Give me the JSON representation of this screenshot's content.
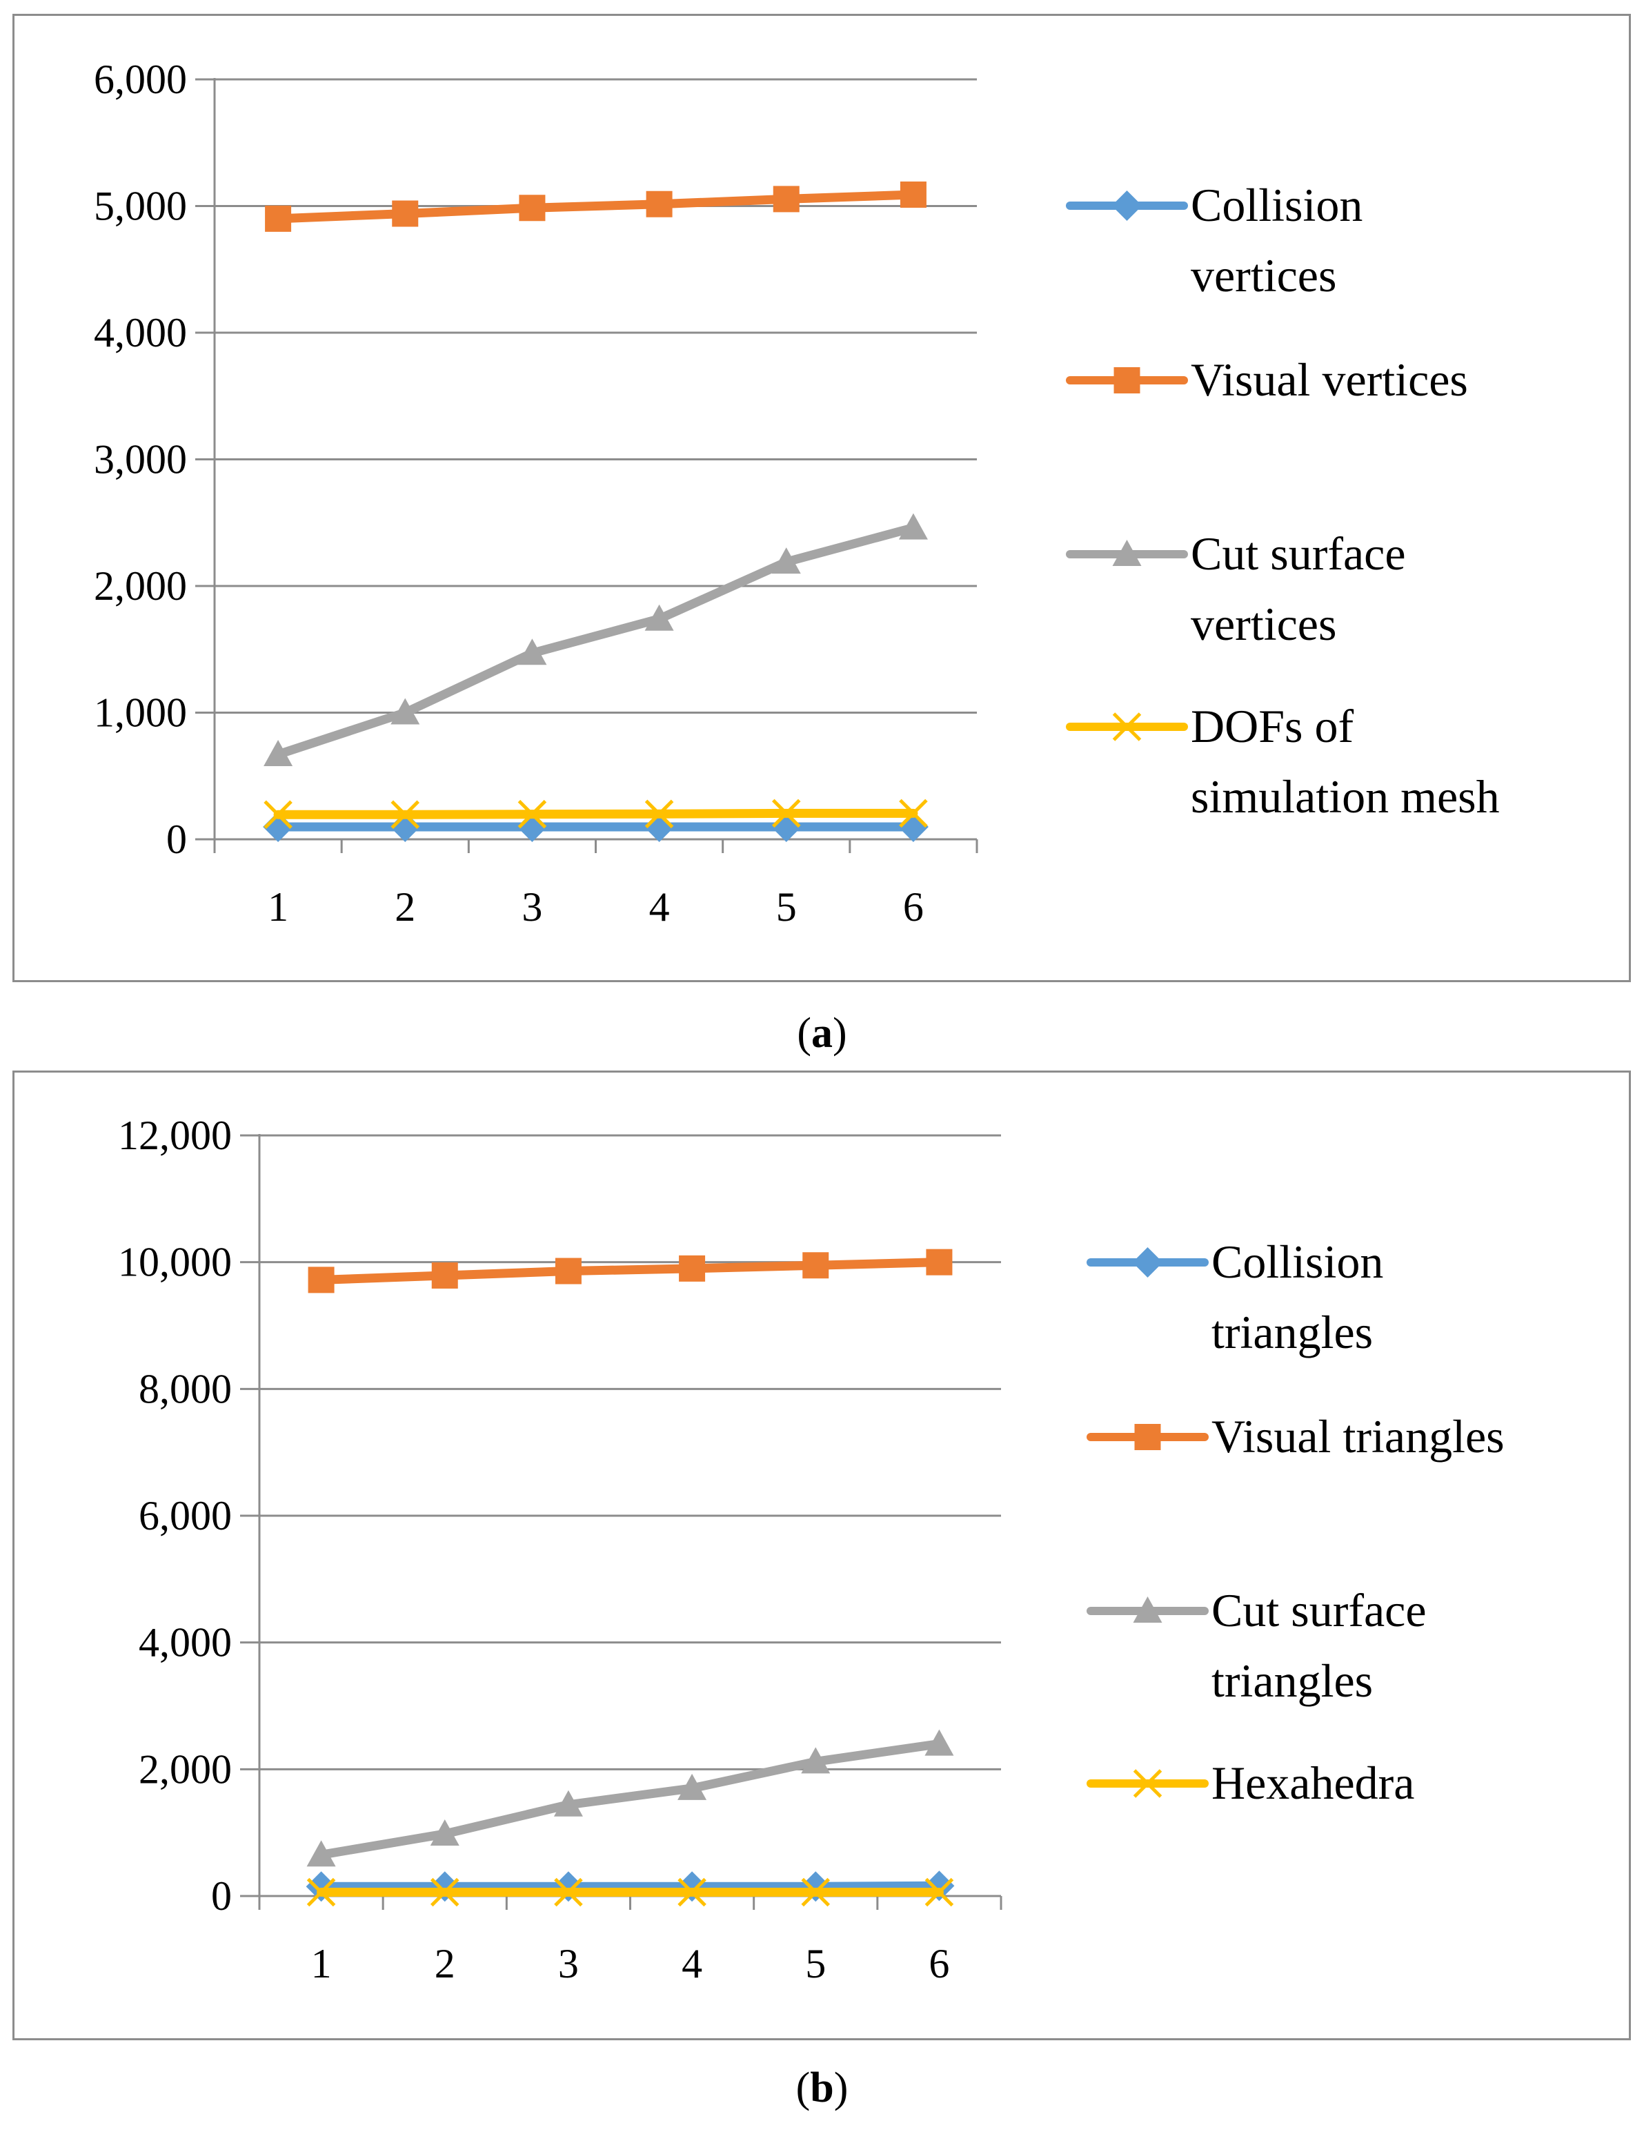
{
  "chart_data": [
    {
      "type": "line",
      "panel": "a",
      "x": [
        1,
        2,
        3,
        4,
        5,
        6
      ],
      "ylim": [
        0,
        6000
      ],
      "yticks": [
        0,
        1000,
        2000,
        3000,
        4000,
        5000,
        6000
      ],
      "ytick_labels": [
        "0",
        "1,000",
        "2,000",
        "3,000",
        "4,000",
        "5,000",
        "6,000"
      ],
      "grid": true,
      "legend_position": "right",
      "series": [
        {
          "name": "Collision vertices",
          "legend_lines": [
            "Collision",
            "vertices"
          ],
          "color": "#5b9bd5",
          "marker": "diamond",
          "values": [
            98,
            98,
            98,
            98,
            98,
            98
          ]
        },
        {
          "name": "Visual vertices",
          "legend_lines": [
            "Visual vertices"
          ],
          "color": "#ed7d31",
          "marker": "square",
          "values": [
            4900,
            4940,
            4985,
            5015,
            5055,
            5090
          ]
        },
        {
          "name": "Cut surface vertices",
          "legend_lines": [
            "Cut surface",
            "vertices"
          ],
          "color": "#a5a5a5",
          "marker": "triangle",
          "values": [
            670,
            1000,
            1470,
            1740,
            2190,
            2460
          ]
        },
        {
          "name": "DOFs of simulation mesh",
          "legend_lines": [
            "DOFs of",
            "simulation mesh"
          ],
          "color": "#ffc000",
          "marker": "x",
          "values": [
            195,
            195,
            198,
            200,
            205,
            205
          ]
        }
      ]
    },
    {
      "type": "line",
      "panel": "b",
      "x": [
        1,
        2,
        3,
        4,
        5,
        6
      ],
      "ylim": [
        0,
        12000
      ],
      "yticks": [
        0,
        2000,
        4000,
        6000,
        8000,
        10000,
        12000
      ],
      "ytick_labels": [
        "0",
        "2,000",
        "4,000",
        "6,000",
        "8,000",
        "10,000",
        "12,000"
      ],
      "grid": true,
      "legend_position": "right",
      "series": [
        {
          "name": "Collision triangles",
          "legend_lines": [
            "Collision",
            "triangles"
          ],
          "color": "#5b9bd5",
          "marker": "diamond",
          "values": [
            150,
            150,
            150,
            150,
            150,
            160
          ]
        },
        {
          "name": "Visual triangles",
          "legend_lines": [
            "Visual triangles"
          ],
          "color": "#ed7d31",
          "marker": "square",
          "values": [
            9720,
            9790,
            9860,
            9900,
            9950,
            10000
          ]
        },
        {
          "name": "Cut surface triangles",
          "legend_lines": [
            "Cut surface",
            "triangles"
          ],
          "color": "#a5a5a5",
          "marker": "triangle",
          "values": [
            650,
            980,
            1440,
            1700,
            2120,
            2400
          ]
        },
        {
          "name": "Hexahedra",
          "legend_lines": [
            "Hexahedra"
          ],
          "color": "#ffc000",
          "marker": "x",
          "values": [
            60,
            60,
            60,
            60,
            60,
            60
          ]
        }
      ]
    }
  ],
  "captions": {
    "a": {
      "open": "(",
      "label": "a",
      "close": ")"
    },
    "b": {
      "open": "(",
      "label": "b",
      "close": ")"
    }
  }
}
